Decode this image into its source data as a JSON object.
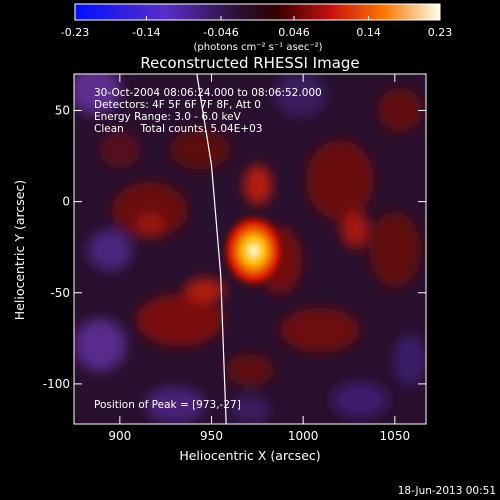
{
  "chart_data": {
    "type": "heatmap",
    "title": "Reconstructed RHESSI Image",
    "xlabel": "Heliocentric X (arcsec)",
    "ylabel": "Heliocentric Y (arcsec)",
    "xlim": [
      875,
      1067
    ],
    "ylim": [
      -122,
      70
    ],
    "x_ticks": [
      {
        "value": 900,
        "label": "900"
      },
      {
        "value": 950,
        "label": "950"
      },
      {
        "value": 1000,
        "label": "1000"
      },
      {
        "value": 1050,
        "label": "1050"
      }
    ],
    "y_ticks": [
      {
        "value": 50,
        "label": "50"
      },
      {
        "value": 0,
        "label": "0"
      },
      {
        "value": -50,
        "label": "-50"
      },
      {
        "value": -100,
        "label": "-100"
      }
    ],
    "colorbar": {
      "range": [
        -0.23,
        0.23
      ],
      "ticks": [
        {
          "value": -0.23,
          "label": "-0.23"
        },
        {
          "value": -0.14,
          "label": "-0.14"
        },
        {
          "value": -0.046,
          "label": "-0.046"
        },
        {
          "value": 0.046,
          "label": "0.046"
        },
        {
          "value": 0.14,
          "label": "0.14"
        },
        {
          "value": 0.23,
          "label": "0.23"
        }
      ],
      "label": "(photons cm⁻² s⁻¹ asec⁻²)"
    },
    "annotations": [
      "30-Oct-2004 08:06:24.000 to 08:06:52.000",
      "Detectors: 4F 5F 6F 7F 8F, Att 0",
      "Energy Range: 3.0 - 6.0 keV",
      "Clean     Total counts: 5.04E+03"
    ],
    "peak": {
      "x": 973,
      "y": -27,
      "label": "Position of Peak = [973,-27]"
    },
    "limb_curve": [
      [
        942,
        70
      ],
      [
        950,
        20
      ],
      [
        955,
        -40
      ],
      [
        958,
        -122
      ]
    ],
    "timestamp": "18-Jun-2013 00:51"
  },
  "colors": {
    "background": "#000000",
    "text": "#ffffff",
    "limb": "#ffffff"
  }
}
